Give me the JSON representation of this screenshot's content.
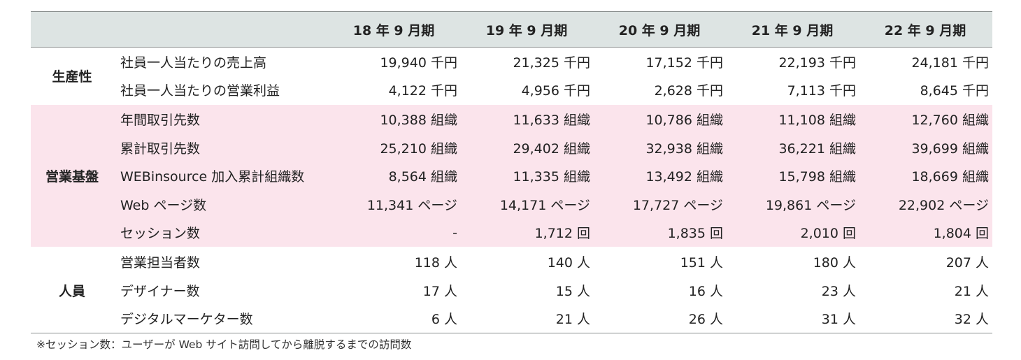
{
  "header": {
    "columns": [
      "18 年 9 月期",
      "19 年 9 月期",
      "20 年 9 月期",
      "21 年 9 月期",
      "22 年 9 月期"
    ]
  },
  "groups": [
    {
      "label": "生産性",
      "rows": [
        {
          "label": "社員一人当たりの売上高",
          "values": [
            "19,940 千円",
            "21,325 千円",
            "17,152 千円",
            "22,193 千円",
            "24,181 千円"
          ]
        },
        {
          "label": "社員一人当たりの営業利益",
          "values": [
            "4,122 千円",
            "4,956 千円",
            "2,628 千円",
            "7,113 千円",
            "8,645 千円"
          ]
        }
      ]
    },
    {
      "label": "営業基盤",
      "rows": [
        {
          "label": "年間取引先数",
          "values": [
            "10,388 組織",
            "11,633 組織",
            "10,786 組織",
            "11,108 組織",
            "12,760 組織"
          ]
        },
        {
          "label": "累計取引先数",
          "values": [
            "25,210 組織",
            "29,402 組織",
            "32,938 組織",
            "36,221 組織",
            "39,699 組織"
          ]
        },
        {
          "label": "WEBinsource 加入累計組織数",
          "values": [
            "8,564 組織",
            "11,335 組織",
            "13,492 組織",
            "15,798 組織",
            "18,669 組織"
          ]
        },
        {
          "label": "Web ページ数",
          "values": [
            "11,341 ページ",
            "14,171 ページ",
            "17,727 ページ",
            "19,861 ページ",
            "22,902 ページ"
          ]
        },
        {
          "label": "セッション数",
          "values": [
            "-",
            "1,712 回",
            "1,835 回",
            "2,010 回",
            "1,804 回"
          ]
        }
      ]
    },
    {
      "label": "人員",
      "rows": [
        {
          "label": "営業担当者数",
          "values": [
            "118 人",
            "140 人",
            "151 人",
            "180 人",
            "207 人"
          ]
        },
        {
          "label": "デザイナー数",
          "values": [
            "17 人",
            "15 人",
            "16 人",
            "23 人",
            "21 人"
          ]
        },
        {
          "label": "デジタルマーケター数",
          "values": [
            "6 人",
            "21 人",
            "26 人",
            "31 人",
            "32 人"
          ]
        }
      ]
    }
  ],
  "colors": {
    "header_bg": "#dde4e3",
    "highlight_bg": "#fbe4ec",
    "rule": "#8a8f8e"
  },
  "footnote": "※セッション数：ユーザーが Web サイト訪問してから離脱するまでの訪問数"
}
